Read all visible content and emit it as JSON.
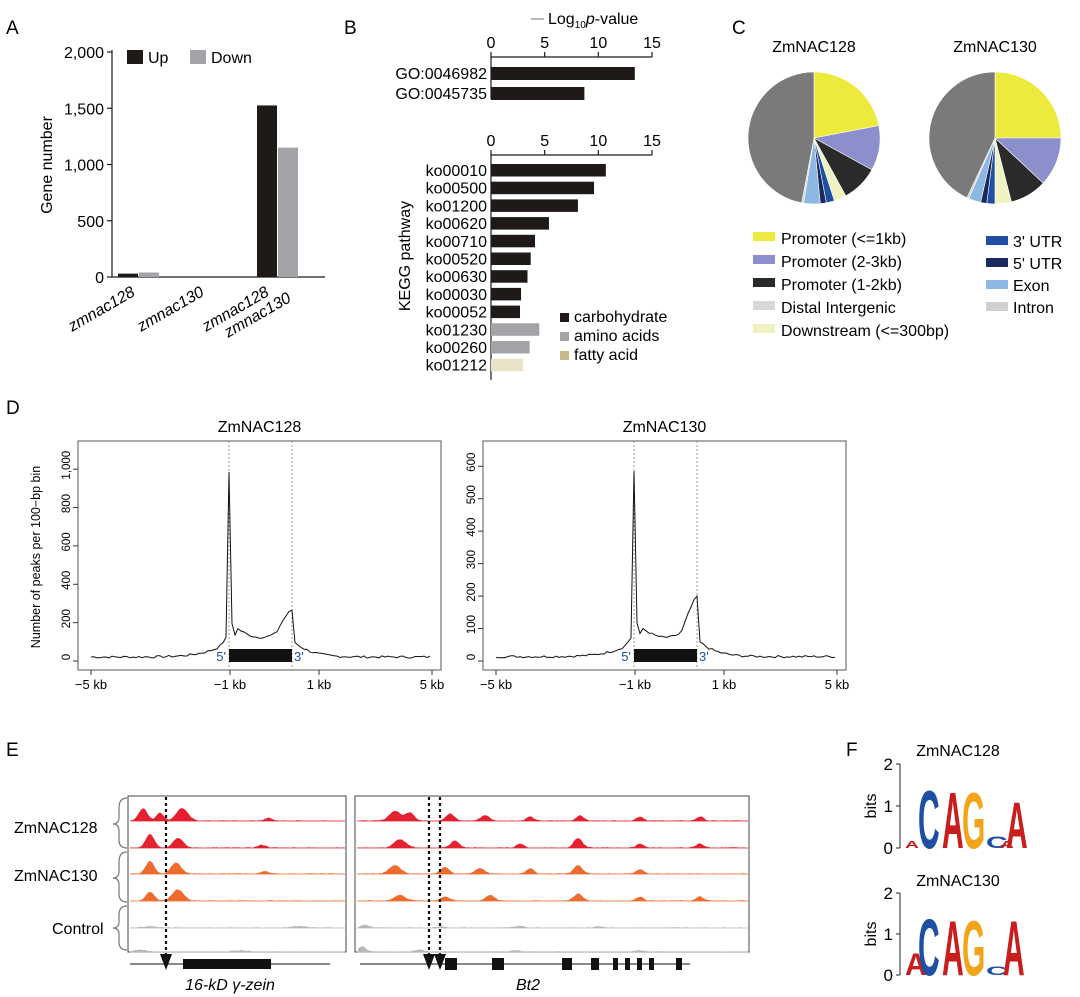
{
  "panels": {
    "A": "A",
    "B": "B",
    "C": "C",
    "D": "D",
    "E": "E",
    "F": "F"
  },
  "colors": {
    "up": "#1f1a17",
    "down": "#a3a3a8",
    "kegg_carbohydrate": "#1f1a17",
    "kegg_amino": "#a3a3a8",
    "kegg_fatty": "#e9e2c8",
    "track_red": "#e4212e",
    "track_orange": "#ee6b2e",
    "track_gray": "#b8b8b8",
    "motif_C": "#1f4fa3",
    "motif_A": "#c81e1e",
    "motif_G": "#f2a51a",
    "motif_T": "#2e9a3a"
  },
  "chart_data": [
    {
      "id": "A",
      "type": "bar",
      "ylabel": "Gene number",
      "ylim": [
        0,
        2000
      ],
      "yticks": [
        "0",
        "500",
        "1,000",
        "1,500",
        "2,000"
      ],
      "categories": [
        [
          "zmnac128"
        ],
        [
          "zmnac130"
        ],
        [
          "zmnac128",
          "zmnac130"
        ]
      ],
      "series": [
        {
          "name": "Up",
          "values": [
            30,
            0,
            1525
          ]
        },
        {
          "name": "Down",
          "values": [
            40,
            0,
            1150
          ]
        }
      ],
      "legend": "top-left"
    },
    {
      "id": "B-GO",
      "type": "bar",
      "orientation": "horizontal",
      "xlabel_prefix": "Log",
      "xlabel_sub": "10",
      "xlabel_suffix": "p",
      "xlabel_tail": "-value",
      "xlim": [
        0,
        15
      ],
      "xticks": [
        "0",
        "5",
        "10",
        "15"
      ],
      "categories": [
        "GO:0046982",
        "GO:0045735"
      ],
      "values": [
        13.4,
        8.7
      ]
    },
    {
      "id": "B-KEGG",
      "type": "bar",
      "orientation": "horizontal",
      "ylabel": "KEGG pathway",
      "xlim": [
        0,
        15
      ],
      "xticks": [
        "0",
        "5",
        "10",
        "15"
      ],
      "categories": [
        "ko00010",
        "ko00500",
        "ko01200",
        "ko00620",
        "ko00710",
        "ko00520",
        "ko00630",
        "ko00030",
        "ko00052",
        "ko01230",
        "ko00260",
        "ko01212"
      ],
      "values": [
        10.7,
        9.6,
        8.1,
        5.4,
        4.1,
        3.7,
        3.4,
        2.8,
        2.7,
        4.5,
        3.6,
        3.0
      ],
      "groups": [
        "carbohydrate",
        "carbohydrate",
        "carbohydrate",
        "carbohydrate",
        "carbohydrate",
        "carbohydrate",
        "carbohydrate",
        "carbohydrate",
        "carbohydrate",
        "amino acids",
        "amino acids",
        "fatty acid"
      ],
      "legend": [
        "carbohydrate",
        "amino acids",
        "fatty acid"
      ]
    },
    {
      "id": "C",
      "type": "pie",
      "titles": [
        "ZmNAC128",
        "ZmNAC130"
      ],
      "categories": [
        "Promoter (<=1kb)",
        "Promoter (2-3kb)",
        "Promoter (1-2kb)",
        "Downstream (<=300bp)",
        "3' UTR",
        "5' UTR",
        "Exon",
        "Intron",
        "Distal Intergenic"
      ],
      "series": [
        {
          "values": [
            22,
            11,
            9,
            3,
            2,
            1.5,
            4,
            0.5,
            47
          ]
        },
        {
          "values": [
            25,
            12,
            9,
            4,
            2,
            1.5,
            3,
            0.5,
            43
          ]
        }
      ],
      "slice_colors": [
        "#ecea3c",
        "#8c8fcc",
        "#2a2a2a",
        "#f1f2c2",
        "#1f4fa3",
        "#1b2a5c",
        "#8db8e4",
        "#cfcfcf",
        "#7a7a7a"
      ],
      "legend_left": [
        {
          "label": "Promoter (<=1kb)",
          "color": "#ecea3c"
        },
        {
          "label": "Promoter (2-3kb)",
          "color": "#8c8fcc"
        },
        {
          "label": "Promoter (1-2kb)",
          "color": "#2a2a2a"
        },
        {
          "label": "Distal Intergenic",
          "color": "#d8d8d8"
        },
        {
          "label": "Downstream (<=300bp)",
          "color": "#f1f2c2"
        }
      ],
      "legend_right": [
        {
          "label": "3' UTR",
          "color": "#1f4fa3"
        },
        {
          "label": "5' UTR",
          "color": "#1b2a5c"
        },
        {
          "label": "Exon",
          "color": "#8db8e4"
        },
        {
          "label": "Intron",
          "color": "#cfcfcf"
        }
      ]
    },
    {
      "id": "D",
      "type": "line",
      "ylabel": "Number of peaks per 100−bp bin",
      "xticks": [
        "−5 kb",
        "−1 kb",
        "1 kb",
        "5 kb"
      ],
      "gene_labels": [
        "5'",
        "3'"
      ],
      "panels": [
        {
          "title": "ZmNAC128",
          "ylim": [
            0,
            1100
          ],
          "yticks": [
            "0",
            "200",
            "400",
            "600",
            "800",
            "1,000"
          ],
          "peak_5": 985,
          "peak_3": 265,
          "baseline": 15
        },
        {
          "title": "ZmNAC130",
          "ylim": [
            0,
            650
          ],
          "yticks": [
            "0",
            "100",
            "200",
            "300",
            "400",
            "500",
            "600"
          ],
          "peak_5": 585,
          "peak_3": 200,
          "baseline": 10
        }
      ]
    }
  ],
  "tracks": {
    "labels": [
      "ZmNAC128",
      "ZmNAC130",
      "Control"
    ],
    "genes": [
      "16-kD γ-zein",
      "Bt2"
    ]
  },
  "motifs": {
    "titles": [
      "ZmNAC128",
      "ZmNAC130"
    ],
    "ylabel": "bits",
    "yticks": [
      "0",
      "1",
      "2"
    ]
  }
}
